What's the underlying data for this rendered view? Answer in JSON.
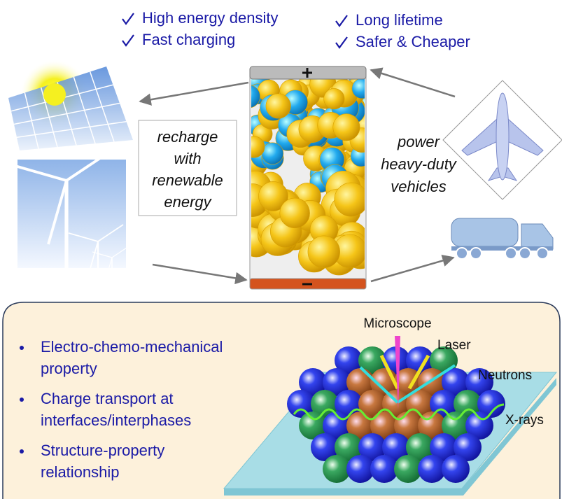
{
  "benefits": [
    "High energy density",
    "Fast charging",
    "Long lifetime",
    "Safer & Cheaper"
  ],
  "recharge_box": {
    "lines": [
      "recharge",
      "with",
      "renewable",
      "energy"
    ]
  },
  "vehicles_text": {
    "lines": [
      "power",
      "heavy-duty",
      "vehicles"
    ]
  },
  "properties": [
    {
      "lines": [
        "Electro-chemo-mechanical",
        "property"
      ]
    },
    {
      "lines": [
        "Charge transport at",
        "interfaces/interphases"
      ]
    },
    {
      "lines": [
        "Structure-property",
        "relationship"
      ]
    }
  ],
  "probes": {
    "microscope": "Microscope",
    "laser": "Laser",
    "neutrons": "Neutrons",
    "xrays": "X-rays"
  }
}
